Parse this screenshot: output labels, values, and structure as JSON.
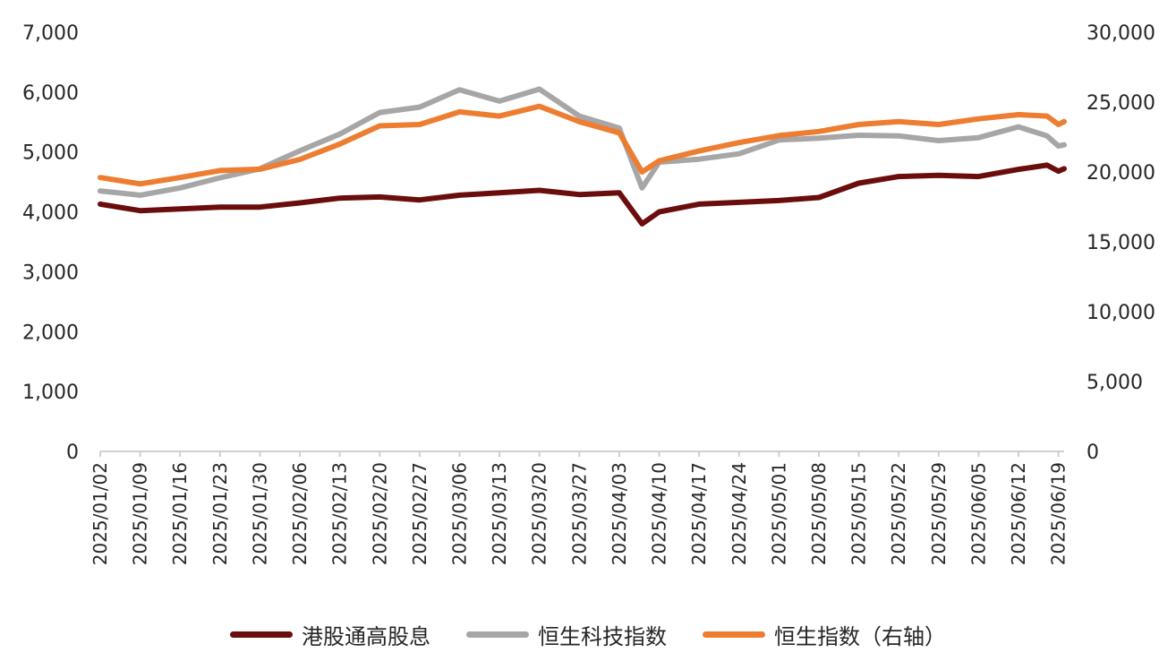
{
  "chart_data": {
    "type": "line",
    "left_axis": {
      "ylim": [
        0,
        7000
      ],
      "ticks": [
        "0",
        "1,000",
        "2,000",
        "3,000",
        "4,000",
        "5,000",
        "6,000",
        "7,000"
      ]
    },
    "right_axis": {
      "ylim": [
        0,
        30000
      ],
      "ticks": [
        "0",
        "5,000",
        "10,000",
        "15,000",
        "20,000",
        "25,000",
        "30,000"
      ]
    },
    "x_tick_labels": [
      "2025/01/02",
      "2025/01/09",
      "2025/01/16",
      "2025/01/23",
      "2025/01/30",
      "2025/02/06",
      "2025/02/13",
      "2025/02/20",
      "2025/02/27",
      "2025/03/06",
      "2025/03/13",
      "2025/03/20",
      "2025/03/27",
      "2025/04/03",
      "2025/04/10",
      "2025/04/17",
      "2025/04/24",
      "2025/05/01",
      "2025/05/08",
      "2025/05/15",
      "2025/05/22",
      "2025/05/29",
      "2025/06/05",
      "2025/06/12",
      "2025/06/19"
    ],
    "series": [
      {
        "name": "港股通高股息",
        "axis": "left",
        "color": "#6b0d0d",
        "x": [
          "2025/01/02",
          "2025/01/09",
          "2025/01/16",
          "2025/01/23",
          "2025/01/30",
          "2025/02/06",
          "2025/02/13",
          "2025/02/20",
          "2025/02/27",
          "2025/03/06",
          "2025/03/13",
          "2025/03/20",
          "2025/03/27",
          "2025/04/03",
          "2025/04/07",
          "2025/04/10",
          "2025/04/17",
          "2025/04/24",
          "2025/05/01",
          "2025/05/08",
          "2025/05/15",
          "2025/05/22",
          "2025/05/29",
          "2025/06/05",
          "2025/06/12",
          "2025/06/17",
          "2025/06/19",
          "2025/06/20"
        ],
        "values": [
          4130,
          4020,
          4050,
          4080,
          4080,
          4150,
          4230,
          4250,
          4200,
          4280,
          4320,
          4360,
          4290,
          4320,
          3800,
          4000,
          4130,
          4160,
          4190,
          4240,
          4480,
          4590,
          4610,
          4590,
          4710,
          4780,
          4680,
          4720
        ]
      },
      {
        "name": "恒生科技指数",
        "axis": "left",
        "color": "#a6a6a6",
        "x": [
          "2025/01/02",
          "2025/01/09",
          "2025/01/16",
          "2025/01/23",
          "2025/01/30",
          "2025/02/06",
          "2025/02/13",
          "2025/02/20",
          "2025/02/27",
          "2025/03/06",
          "2025/03/13",
          "2025/03/20",
          "2025/03/27",
          "2025/04/03",
          "2025/04/07",
          "2025/04/10",
          "2025/04/17",
          "2025/04/24",
          "2025/05/01",
          "2025/05/08",
          "2025/05/15",
          "2025/05/22",
          "2025/05/29",
          "2025/06/05",
          "2025/06/12",
          "2025/06/17",
          "2025/06/19",
          "2025/06/20"
        ],
        "values": [
          4350,
          4280,
          4400,
          4570,
          4720,
          5020,
          5300,
          5660,
          5750,
          6040,
          5850,
          6050,
          5600,
          5400,
          4400,
          4830,
          4880,
          4970,
          5200,
          5230,
          5280,
          5270,
          5190,
          5240,
          5420,
          5270,
          5100,
          5120
        ]
      },
      {
        "name": "恒生指数（右轴）",
        "axis": "right",
        "color": "#ed7d31",
        "x": [
          "2025/01/02",
          "2025/01/09",
          "2025/01/16",
          "2025/01/23",
          "2025/01/30",
          "2025/02/06",
          "2025/02/13",
          "2025/02/20",
          "2025/02/27",
          "2025/03/06",
          "2025/03/13",
          "2025/03/20",
          "2025/03/27",
          "2025/04/03",
          "2025/04/07",
          "2025/04/10",
          "2025/04/17",
          "2025/04/24",
          "2025/05/01",
          "2025/05/08",
          "2025/05/15",
          "2025/05/22",
          "2025/05/29",
          "2025/06/05",
          "2025/06/12",
          "2025/06/17",
          "2025/06/19",
          "2025/06/20"
        ],
        "values": [
          19600,
          19150,
          19600,
          20100,
          20200,
          20900,
          22000,
          23300,
          23400,
          24300,
          24000,
          24700,
          23600,
          22800,
          20000,
          20800,
          21500,
          22100,
          22600,
          22900,
          23400,
          23600,
          23400,
          23800,
          24100,
          24000,
          23400,
          23600
        ]
      }
    ],
    "legend": {
      "position": "bottom"
    },
    "grid": false
  }
}
